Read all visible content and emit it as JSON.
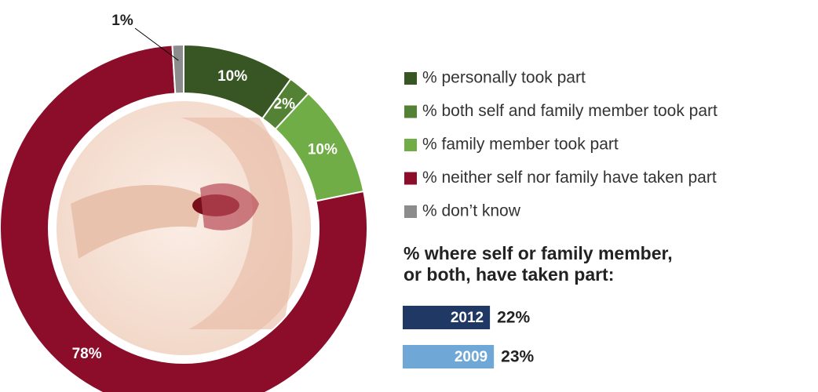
{
  "chart_data": [
    {
      "type": "donut",
      "categories": [
        "% personally took part",
        "% both self and family member took part",
        "% family member took part",
        "% neither self nor family have taken part",
        "% don’t know"
      ],
      "values": [
        10,
        2,
        10,
        78,
        1
      ],
      "value_labels": [
        "10%",
        "2%",
        "10%",
        "78%",
        "1%"
      ],
      "colors": [
        "#375623",
        "#548235",
        "#70ad47",
        "#8b0d2a",
        "#8c8c8c"
      ],
      "legend": "right"
    },
    {
      "type": "hbar",
      "title": [
        "% where self or family member,",
        "or both, have taken part:"
      ],
      "categories": [
        "2012",
        "2009"
      ],
      "values": [
        22,
        23
      ],
      "value_labels": [
        "22%",
        "23%"
      ],
      "colors": [
        "#1f3864",
        "#6fa8d6"
      ]
    }
  ]
}
